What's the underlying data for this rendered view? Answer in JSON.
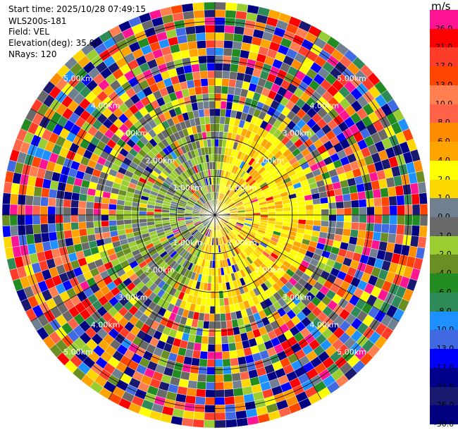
{
  "info": {
    "start_time": "Start time: 2025/10/28 07:49:15",
    "instrument": "WLS200s-181",
    "field": "Field: VEL",
    "elevation": "Elevation(deg): 35.00",
    "nrays": "NRays: 120"
  },
  "colorbar": {
    "unit": "m/s",
    "levels": [
      {
        "label": "26.0",
        "color": "#ff1493"
      },
      {
        "label": "21.0",
        "color": "#ff0000"
      },
      {
        "label": "17.0",
        "color": "#ff3c28"
      },
      {
        "label": "13.0",
        "color": "#ff4500"
      },
      {
        "label": "10.0",
        "color": "#ff7f50"
      },
      {
        "label": "8.0",
        "color": "#ff6347"
      },
      {
        "label": "6.0",
        "color": "#ff8c00"
      },
      {
        "label": "4.0",
        "color": "#ffa500"
      },
      {
        "label": "2.0",
        "color": "#ffff00"
      },
      {
        "label": "1.0",
        "color": "#ffd700"
      },
      {
        "label": "0.0",
        "color": "#708090"
      },
      {
        "label": "-1.0",
        "color": "#696969"
      },
      {
        "label": "-2.0",
        "color": "#9acd32"
      },
      {
        "label": "-4.0",
        "color": "#6b8e23"
      },
      {
        "label": "-6.0",
        "color": "#228b22"
      },
      {
        "label": "-8.0",
        "color": "#2e8b57"
      },
      {
        "label": "-10.0",
        "color": "#1e90ff"
      },
      {
        "label": "-13.0",
        "color": "#4169e1"
      },
      {
        "label": "-17.0",
        "color": "#0000ff"
      },
      {
        "label": "-21.0",
        "color": "#00008b"
      },
      {
        "label": "-26.0",
        "color": "#191970"
      },
      {
        "label": "-30.0",
        "color": "#000080"
      }
    ]
  },
  "ppi": {
    "range_rings": [
      {
        "label": "1.00km"
      },
      {
        "label": "2.00km"
      },
      {
        "label": "3.00km"
      },
      {
        "label": "4.00km"
      },
      {
        "label": "5.00km"
      }
    ],
    "rays": 120,
    "max_range_km": 5.5
  }
}
